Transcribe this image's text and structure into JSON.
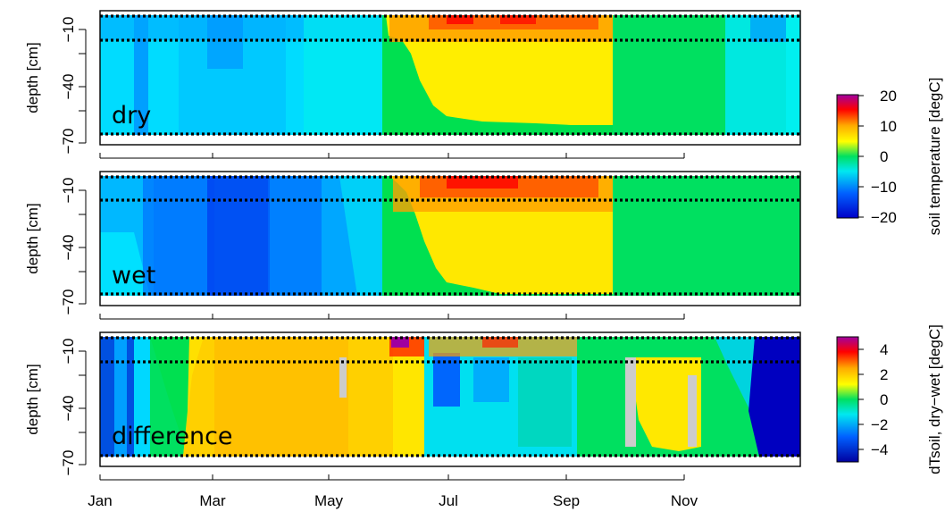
{
  "chart_data": [
    {
      "type": "heatmap",
      "panel": "dry",
      "label": "dry",
      "ylabel": "depth [cm]",
      "y_ticks": [
        -10,
        -40,
        -70
      ],
      "ylim": [
        -70,
        -5
      ],
      "x_ticks": [
        "Jan",
        "Mar",
        "May",
        "Jul",
        "Sep",
        "Nov"
      ],
      "colorbar": {
        "label": "soil temperature [degC]",
        "ticks": [
          20,
          10,
          0,
          -10,
          -20
        ],
        "range": [
          -20,
          20
        ]
      },
      "reference_depths": [
        -5,
        -17,
        -68
      ],
      "regions": [
        {
          "months": "Jan-mid May",
          "depth": "all",
          "value": -10
        },
        {
          "months": "mid May-mid Sep",
          "depth": "upper",
          "value": 10
        },
        {
          "months": "Jul-Sep",
          "depth": "surface",
          "value": 14
        },
        {
          "months": "mid Sep-Dec",
          "depth": "all",
          "value": 1
        }
      ]
    },
    {
      "type": "heatmap",
      "panel": "wet",
      "label": "wet",
      "ylabel": "depth [cm]",
      "y_ticks": [
        -10,
        -40,
        -70
      ],
      "ylim": [
        -70,
        -5
      ],
      "x_ticks": [
        "Jan",
        "Mar",
        "May",
        "Jul",
        "Sep",
        "Nov"
      ],
      "colorbar": {
        "label": "soil temperature [degC]",
        "ticks": [
          20,
          10,
          0,
          -10,
          -20
        ],
        "range": [
          -20,
          20
        ]
      },
      "reference_depths": [
        -5,
        -17,
        -68
      ],
      "regions": [
        {
          "months": "Jan-mid May",
          "depth": "all",
          "value": -15
        },
        {
          "months": "mid May-mid Sep",
          "depth": "upper",
          "value": 10
        },
        {
          "months": "Jul-Sep",
          "depth": "surface",
          "value": 15
        },
        {
          "months": "mid Sep-Dec",
          "depth": "all",
          "value": 1
        }
      ]
    },
    {
      "type": "heatmap",
      "panel": "difference",
      "label": "difference",
      "ylabel": "depth [cm]",
      "y_ticks": [
        -10,
        -40,
        -70
      ],
      "ylim": [
        -70,
        -5
      ],
      "x_ticks": [
        "Jan",
        "Mar",
        "May",
        "Jul",
        "Sep",
        "Nov"
      ],
      "colorbar": {
        "label": "dTsoil, dry−wet [degC]",
        "ticks": [
          4,
          2,
          0,
          -2,
          -4
        ],
        "range": [
          -5,
          5
        ]
      },
      "reference_depths": [
        -5,
        -17,
        -68
      ],
      "regions": [
        {
          "months": "Jan-Feb",
          "depth": "all",
          "value": -4
        },
        {
          "months": "Feb-Jun",
          "depth": "all",
          "value": 1.3
        },
        {
          "months": "Jun-Oct",
          "depth": "all",
          "value": -1.5
        },
        {
          "months": "Oct-Nov",
          "depth": "all",
          "value": 1
        },
        {
          "months": "Dec",
          "depth": "all",
          "value": -4.5
        }
      ]
    }
  ],
  "labels": {
    "ylabel": "depth [cm]",
    "y_ticks": [
      "−10",
      "−40",
      "−70"
    ],
    "x_ticks": [
      "Jan",
      "Mar",
      "May",
      "Jul",
      "Sep",
      "Nov"
    ],
    "panel_dry": "dry",
    "panel_wet": "wet",
    "panel_diff": "difference",
    "cb_temp_label": "soil temperature [degC]",
    "cb_temp_ticks": [
      "20",
      "10",
      "0",
      "−10",
      "−20"
    ],
    "cb_diff_label": "dTsoil, dry−wet [degC]",
    "cb_diff_ticks": [
      "4",
      "2",
      "0",
      "−2",
      "−4"
    ]
  },
  "colors": {
    "ramp": [
      "#0000ff",
      "#0080ff",
      "#00ffff",
      "#00e070",
      "#ffff00",
      "#ffb000",
      "#ff0000",
      "#b000b0"
    ],
    "na_gray": "#cccccc"
  }
}
